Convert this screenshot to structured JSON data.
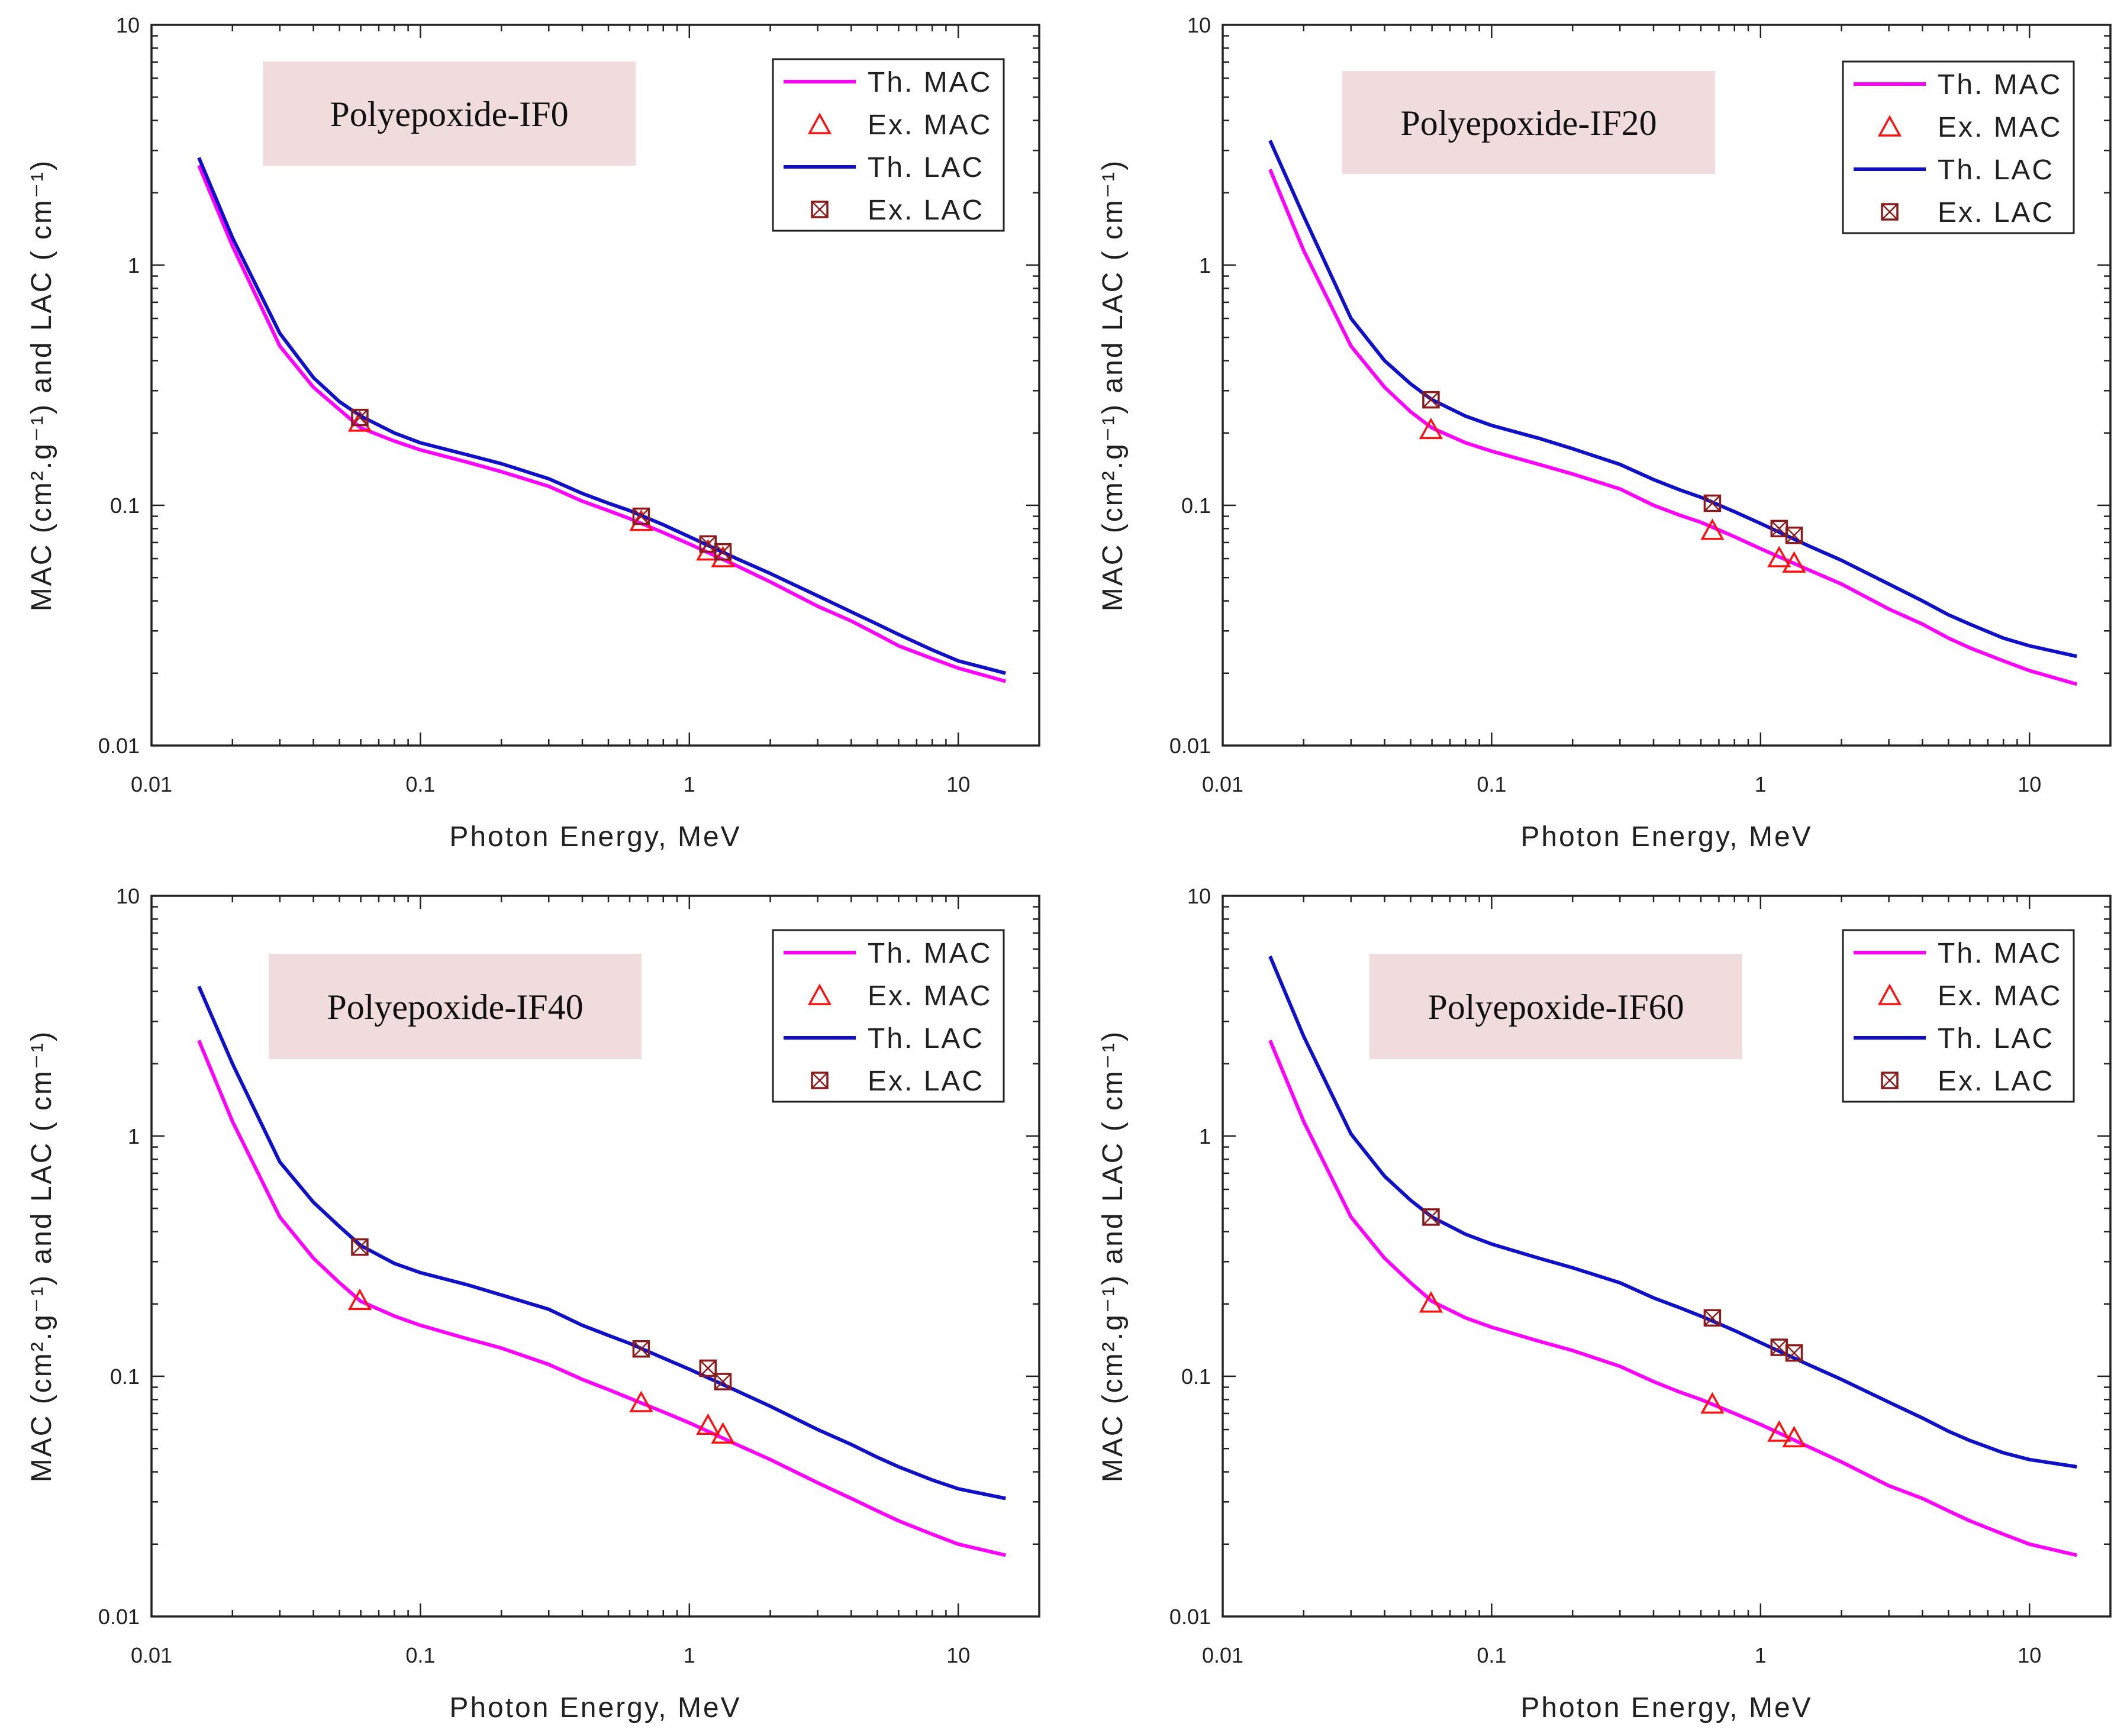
{
  "colors": {
    "th_mac": "#ff00ff",
    "ex_mac": "#ff1010",
    "th_lac": "#1010c8",
    "ex_lac": "#8b1a1a",
    "title_bg": "#f0dcdc"
  },
  "chart_data": [
    {
      "type": "line",
      "title": "Polyepoxide-IF0",
      "xlabel": "Photon Energy, MeV",
      "ylabel": "MAC (cm².g⁻¹) and LAC ( cm⁻¹)",
      "xscale": "log",
      "yscale": "log",
      "xlim": [
        0.01,
        20
      ],
      "ylim": [
        0.01,
        10
      ],
      "x_ticks": [
        "0.01",
        "0.1",
        "1",
        "10"
      ],
      "y_ticks": [
        "0.01",
        "0.1",
        "1",
        "10"
      ],
      "legend": [
        "Th. MAC",
        "Ex. MAC",
        "Th. LAC",
        "Ex. LAC"
      ],
      "series": [
        {
          "name": "Th. MAC",
          "x": [
            0.015,
            0.02,
            0.03,
            0.04,
            0.05,
            0.06,
            0.08,
            0.1,
            0.15,
            0.2,
            0.3,
            0.4,
            0.5,
            0.6,
            0.8,
            1,
            1.5,
            2,
            3,
            4,
            5,
            6,
            8,
            10,
            15
          ],
          "y": [
            2.6,
            1.2,
            0.46,
            0.31,
            0.25,
            0.21,
            0.185,
            0.17,
            0.151,
            0.138,
            0.12,
            0.104,
            0.095,
            0.088,
            0.077,
            0.069,
            0.056,
            0.048,
            0.038,
            0.033,
            0.029,
            0.026,
            0.023,
            0.021,
            0.0185
          ]
        },
        {
          "name": "Ex. MAC",
          "x": [
            0.0595,
            0.662,
            1.173,
            1.333
          ],
          "y": [
            0.22,
            0.085,
            0.064,
            0.06
          ]
        },
        {
          "name": "Th. LAC",
          "x": [
            0.015,
            0.02,
            0.03,
            0.04,
            0.05,
            0.06,
            0.08,
            0.1,
            0.15,
            0.2,
            0.3,
            0.4,
            0.5,
            0.6,
            0.8,
            1,
            1.5,
            2,
            3,
            4,
            5,
            6,
            8,
            10,
            15
          ],
          "y": [
            2.8,
            1.3,
            0.52,
            0.34,
            0.27,
            0.235,
            0.2,
            0.182,
            0.162,
            0.149,
            0.129,
            0.112,
            0.102,
            0.095,
            0.083,
            0.074,
            0.06,
            0.052,
            0.042,
            0.036,
            0.032,
            0.029,
            0.025,
            0.0225,
            0.02
          ]
        },
        {
          "name": "Ex. LAC",
          "x": [
            0.0595,
            0.662,
            1.173,
            1.333
          ],
          "y": [
            0.232,
            0.09,
            0.069,
            0.064
          ]
        }
      ]
    },
    {
      "type": "line",
      "title": "Polyepoxide-IF20",
      "xlabel": "Photon Energy, MeV",
      "ylabel": "MAC (cm².g⁻¹) and LAC ( cm⁻¹)",
      "xscale": "log",
      "yscale": "log",
      "xlim": [
        0.01,
        20
      ],
      "ylim": [
        0.01,
        10
      ],
      "x_ticks": [
        "0.01",
        "0.1",
        "1",
        "10"
      ],
      "y_ticks": [
        "0.01",
        "0.1",
        "1",
        "10"
      ],
      "legend": [
        "Th. MAC",
        "Ex. MAC",
        "Th. LAC",
        "Ex. LAC"
      ],
      "series": [
        {
          "name": "Th. MAC",
          "x": [
            0.015,
            0.02,
            0.03,
            0.04,
            0.05,
            0.06,
            0.08,
            0.1,
            0.15,
            0.2,
            0.3,
            0.4,
            0.5,
            0.6,
            0.8,
            1,
            1.5,
            2,
            3,
            4,
            5,
            6,
            8,
            10,
            15
          ],
          "y": [
            2.5,
            1.15,
            0.46,
            0.31,
            0.245,
            0.21,
            0.182,
            0.168,
            0.148,
            0.135,
            0.117,
            0.1,
            0.091,
            0.085,
            0.074,
            0.066,
            0.054,
            0.047,
            0.037,
            0.032,
            0.028,
            0.0255,
            0.0225,
            0.0205,
            0.018
          ]
        },
        {
          "name": "Ex. MAC",
          "x": [
            0.0595,
            0.662,
            1.173,
            1.333
          ],
          "y": [
            0.205,
            0.078,
            0.06,
            0.057
          ]
        },
        {
          "name": "Th. LAC",
          "x": [
            0.015,
            0.02,
            0.03,
            0.04,
            0.05,
            0.06,
            0.08,
            0.1,
            0.15,
            0.2,
            0.3,
            0.4,
            0.5,
            0.6,
            0.8,
            1,
            1.5,
            2,
            3,
            4,
            5,
            6,
            8,
            10,
            15
          ],
          "y": [
            3.3,
            1.6,
            0.6,
            0.4,
            0.32,
            0.275,
            0.235,
            0.215,
            0.19,
            0.172,
            0.148,
            0.128,
            0.116,
            0.108,
            0.094,
            0.084,
            0.068,
            0.059,
            0.047,
            0.04,
            0.035,
            0.032,
            0.028,
            0.026,
            0.0235
          ]
        },
        {
          "name": "Ex. LAC",
          "x": [
            0.0595,
            0.662,
            1.173,
            1.333
          ],
          "y": [
            0.275,
            0.102,
            0.08,
            0.075
          ]
        }
      ]
    },
    {
      "type": "line",
      "title": "Polyepoxide-IF40",
      "xlabel": "Photon Energy, MeV",
      "ylabel": "MAC (cm².g⁻¹) and LAC ( cm⁻¹)",
      "xscale": "log",
      "yscale": "log",
      "xlim": [
        0.01,
        20
      ],
      "ylim": [
        0.01,
        10
      ],
      "x_ticks": [
        "0.01",
        "0.1",
        "1",
        "10"
      ],
      "y_ticks": [
        "0.01",
        "0.1",
        "1",
        "10"
      ],
      "legend": [
        "Th. MAC",
        "Ex. MAC",
        "Th. LAC",
        "Ex. LAC"
      ],
      "series": [
        {
          "name": "Th. MAC",
          "x": [
            0.015,
            0.02,
            0.03,
            0.04,
            0.05,
            0.06,
            0.08,
            0.1,
            0.15,
            0.2,
            0.3,
            0.4,
            0.5,
            0.6,
            0.8,
            1,
            1.5,
            2,
            3,
            4,
            5,
            6,
            8,
            10,
            15
          ],
          "y": [
            2.5,
            1.15,
            0.46,
            0.31,
            0.245,
            0.205,
            0.178,
            0.163,
            0.143,
            0.131,
            0.112,
            0.097,
            0.088,
            0.081,
            0.071,
            0.064,
            0.052,
            0.045,
            0.036,
            0.031,
            0.0275,
            0.025,
            0.022,
            0.02,
            0.018
          ]
        },
        {
          "name": "Ex. MAC",
          "x": [
            0.0595,
            0.662,
            1.173,
            1.333
          ],
          "y": [
            0.205,
            0.077,
            0.062,
            0.057
          ]
        },
        {
          "name": "Th. LAC",
          "x": [
            0.015,
            0.02,
            0.03,
            0.04,
            0.05,
            0.06,
            0.08,
            0.1,
            0.15,
            0.2,
            0.3,
            0.4,
            0.5,
            0.6,
            0.8,
            1,
            1.5,
            2,
            3,
            4,
            5,
            6,
            8,
            10,
            15
          ],
          "y": [
            4.2,
            2.0,
            0.78,
            0.53,
            0.42,
            0.35,
            0.295,
            0.27,
            0.24,
            0.218,
            0.19,
            0.163,
            0.148,
            0.137,
            0.119,
            0.107,
            0.087,
            0.075,
            0.06,
            0.052,
            0.046,
            0.042,
            0.037,
            0.034,
            0.031
          ]
        },
        {
          "name": "Ex. LAC",
          "x": [
            0.0595,
            0.662,
            1.173,
            1.333
          ],
          "y": [
            0.345,
            0.13,
            0.108,
            0.095
          ]
        }
      ]
    },
    {
      "type": "line",
      "title": "Polyepoxide-IF60",
      "xlabel": "Photon Energy, MeV",
      "ylabel": "MAC (cm².g⁻¹) and LAC ( cm⁻¹)",
      "xscale": "log",
      "yscale": "log",
      "xlim": [
        0.01,
        20
      ],
      "ylim": [
        0.01,
        10
      ],
      "x_ticks": [
        "0.01",
        "0.1",
        "1",
        "10"
      ],
      "y_ticks": [
        "0.01",
        "0.1",
        "1",
        "10"
      ],
      "legend": [
        "Th. MAC",
        "Ex. MAC",
        "Th. LAC",
        "Ex. LAC"
      ],
      "series": [
        {
          "name": "Th. MAC",
          "x": [
            0.015,
            0.02,
            0.03,
            0.04,
            0.05,
            0.06,
            0.08,
            0.1,
            0.15,
            0.2,
            0.3,
            0.4,
            0.5,
            0.6,
            0.8,
            1,
            1.5,
            2,
            3,
            4,
            5,
            6,
            8,
            10,
            15
          ],
          "y": [
            2.5,
            1.15,
            0.46,
            0.31,
            0.245,
            0.205,
            0.175,
            0.16,
            0.14,
            0.128,
            0.11,
            0.095,
            0.086,
            0.08,
            0.07,
            0.063,
            0.051,
            0.044,
            0.035,
            0.031,
            0.0275,
            0.025,
            0.022,
            0.02,
            0.018
          ]
        },
        {
          "name": "Ex. MAC",
          "x": [
            0.0595,
            0.662,
            1.173,
            1.333
          ],
          "y": [
            0.2,
            0.076,
            0.058,
            0.055
          ]
        },
        {
          "name": "Th. LAC",
          "x": [
            0.015,
            0.02,
            0.03,
            0.04,
            0.05,
            0.06,
            0.08,
            0.1,
            0.15,
            0.2,
            0.3,
            0.4,
            0.5,
            0.6,
            0.8,
            1,
            1.5,
            2,
            3,
            4,
            5,
            6,
            8,
            10,
            15
          ],
          "y": [
            5.6,
            2.6,
            1.02,
            0.68,
            0.54,
            0.46,
            0.39,
            0.355,
            0.31,
            0.283,
            0.245,
            0.212,
            0.193,
            0.178,
            0.155,
            0.138,
            0.112,
            0.097,
            0.078,
            0.067,
            0.059,
            0.054,
            0.048,
            0.045,
            0.042
          ]
        },
        {
          "name": "Ex. LAC",
          "x": [
            0.0595,
            0.662,
            1.173,
            1.333
          ],
          "y": [
            0.46,
            0.175,
            0.132,
            0.125
          ]
        }
      ]
    }
  ]
}
